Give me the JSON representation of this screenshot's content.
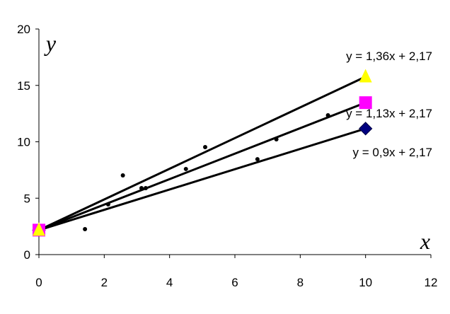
{
  "chart_data": {
    "type": "scatter",
    "x_label": "x",
    "y_label": "y",
    "xlim": [
      0,
      12
    ],
    "ylim": [
      0,
      20
    ],
    "xticks": [
      0,
      2,
      4,
      6,
      8,
      10,
      12
    ],
    "yticks": [
      0,
      5,
      10,
      15,
      20
    ],
    "grid": false,
    "points": {
      "color": "#000000",
      "x": [
        1.41,
        2.12,
        2.57,
        3.14,
        3.27,
        4.5,
        5.09,
        6.69,
        7.27,
        8.85
      ],
      "values": [
        2.26,
        4.45,
        7.02,
        5.89,
        5.89,
        7.59,
        9.53,
        8.46,
        10.22,
        12.35
      ]
    },
    "lines": [
      {
        "label": "y = 0,9x + 2,17",
        "color": "#000000",
        "marker": "diamond",
        "marker_color": "#000080",
        "x": [
          0,
          10
        ],
        "values": [
          2.17,
          11.17
        ]
      },
      {
        "label": "y = 1,13x + 2,17",
        "color": "#000000",
        "marker": "square",
        "marker_color": "#ff00ff",
        "x": [
          0,
          10
        ],
        "values": [
          2.17,
          13.47
        ]
      },
      {
        "label": "y = 1,36x + 2,17",
        "color": "#000000",
        "marker": "triangle",
        "marker_color": "#ffff00",
        "x": [
          0,
          10
        ],
        "values": [
          2.17,
          15.77
        ]
      }
    ]
  }
}
